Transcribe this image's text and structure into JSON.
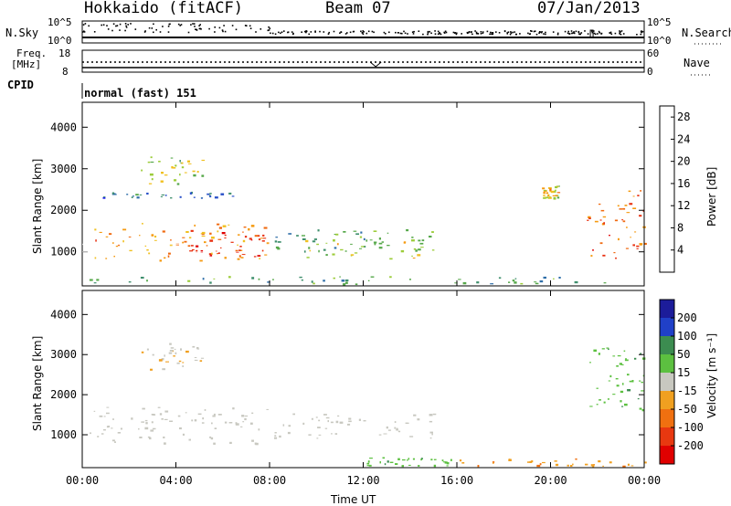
{
  "header": {
    "station": "Hokkaido (fitACF)",
    "beam": "Beam 07",
    "date": "07/Jan/2013"
  },
  "ctrl": {
    "nsky_label": "N.Sky",
    "nsky_ticks": [
      "10^5",
      "10^0"
    ],
    "nsearch_label": "N.Search",
    "nsearch_ticks": [
      "10^5",
      "10^0"
    ],
    "freq_label_1": "Freq.",
    "freq_label_2": "[MHz]",
    "freq_ticks": [
      "18",
      "8"
    ],
    "nave_label": "Nave",
    "nave_ticks": [
      "60",
      "0"
    ],
    "cpid_label": "CPID",
    "cpid_value": "normal (fast) 151"
  },
  "chart_data": [
    {
      "type": "heatmap",
      "title": "",
      "xlabel": "Time UT",
      "ylabel": "Slant Range [km]",
      "x_ticks": [
        "00:00",
        "04:00",
        "08:00",
        "12:00",
        "16:00",
        "20:00",
        "00:00"
      ],
      "xlim_hours": [
        0,
        24
      ],
      "y_ticks": [
        1000,
        2000,
        3000,
        4000
      ],
      "ylim": [
        180,
        4600
      ],
      "colorbar": {
        "label": "Power [dB]",
        "ticks": [
          4,
          8,
          12,
          16,
          20,
          24,
          28
        ],
        "range": [
          0,
          30
        ],
        "colors": [
          "#1c1cf0",
          "#2850c8",
          "#2e6ea8",
          "#3f8f6d",
          "#56a84a",
          "#9ccc3a",
          "#f0c020",
          "#f59a10",
          "#f06a10",
          "#e83010",
          "#e00000"
        ]
      },
      "echo_regions": [
        {
          "t": [
            0.3,
            8.0
          ],
          "range": [
            800,
            1700
          ],
          "power": 22
        },
        {
          "t": [
            4.5,
            8.0
          ],
          "range": [
            900,
            1500
          ],
          "power": 26
        },
        {
          "t": [
            8.0,
            15.2
          ],
          "range": [
            1000,
            1550
          ],
          "power": 11
        },
        {
          "t": [
            9.5,
            14.5
          ],
          "range": [
            850,
            1300
          ],
          "power": 16
        },
        {
          "t": [
            0.3,
            6.5
          ],
          "range": [
            2300,
            2450
          ],
          "power": 6
        },
        {
          "t": [
            2.5,
            5.2
          ],
          "range": [
            2600,
            3300
          ],
          "power": 14
        },
        {
          "t": [
            0.3,
            24.0
          ],
          "range": [
            230,
            420
          ],
          "power": 10
        },
        {
          "t": [
            19.6,
            20.3
          ],
          "range": [
            2300,
            2600
          ],
          "power": 18
        },
        {
          "t": [
            21.5,
            24.0
          ],
          "range": [
            850,
            2500
          ],
          "power": 24
        }
      ]
    },
    {
      "type": "heatmap",
      "title": "",
      "xlabel": "Time UT",
      "ylabel": "Slant Range [km]",
      "x_ticks": [
        "00:00",
        "04:00",
        "08:00",
        "12:00",
        "16:00",
        "20:00",
        "00:00"
      ],
      "xlim_hours": [
        0,
        24
      ],
      "y_ticks": [
        1000,
        2000,
        3000,
        4000
      ],
      "ylim": [
        180,
        4600
      ],
      "colorbar": {
        "label": "Velocity [m s⁻¹]",
        "ticks": [
          200,
          100,
          50,
          15,
          -15,
          -50,
          -100,
          -200
        ],
        "colors": [
          "#1c1c9a",
          "#2040c8",
          "#3c8c50",
          "#5cc040",
          "#c8c8c0",
          "#f0a020",
          "#f07010",
          "#e83810",
          "#e00000"
        ]
      },
      "echo_regions": [
        {
          "t": [
            0.3,
            8.0
          ],
          "range": [
            800,
            1700
          ],
          "velocity": 0
        },
        {
          "t": [
            8.0,
            15.2
          ],
          "range": [
            900,
            1550
          ],
          "velocity": 0
        },
        {
          "t": [
            12.0,
            16.0
          ],
          "range": [
            230,
            450
          ],
          "velocity": 40
        },
        {
          "t": [
            16.0,
            24.0
          ],
          "range": [
            230,
            420
          ],
          "velocity": -40
        },
        {
          "t": [
            2.5,
            5.2
          ],
          "range": [
            2600,
            3300
          ],
          "velocity": -10
        },
        {
          "t": [
            21.5,
            24.0
          ],
          "range": [
            1600,
            3200
          ],
          "velocity": 40
        }
      ]
    }
  ]
}
